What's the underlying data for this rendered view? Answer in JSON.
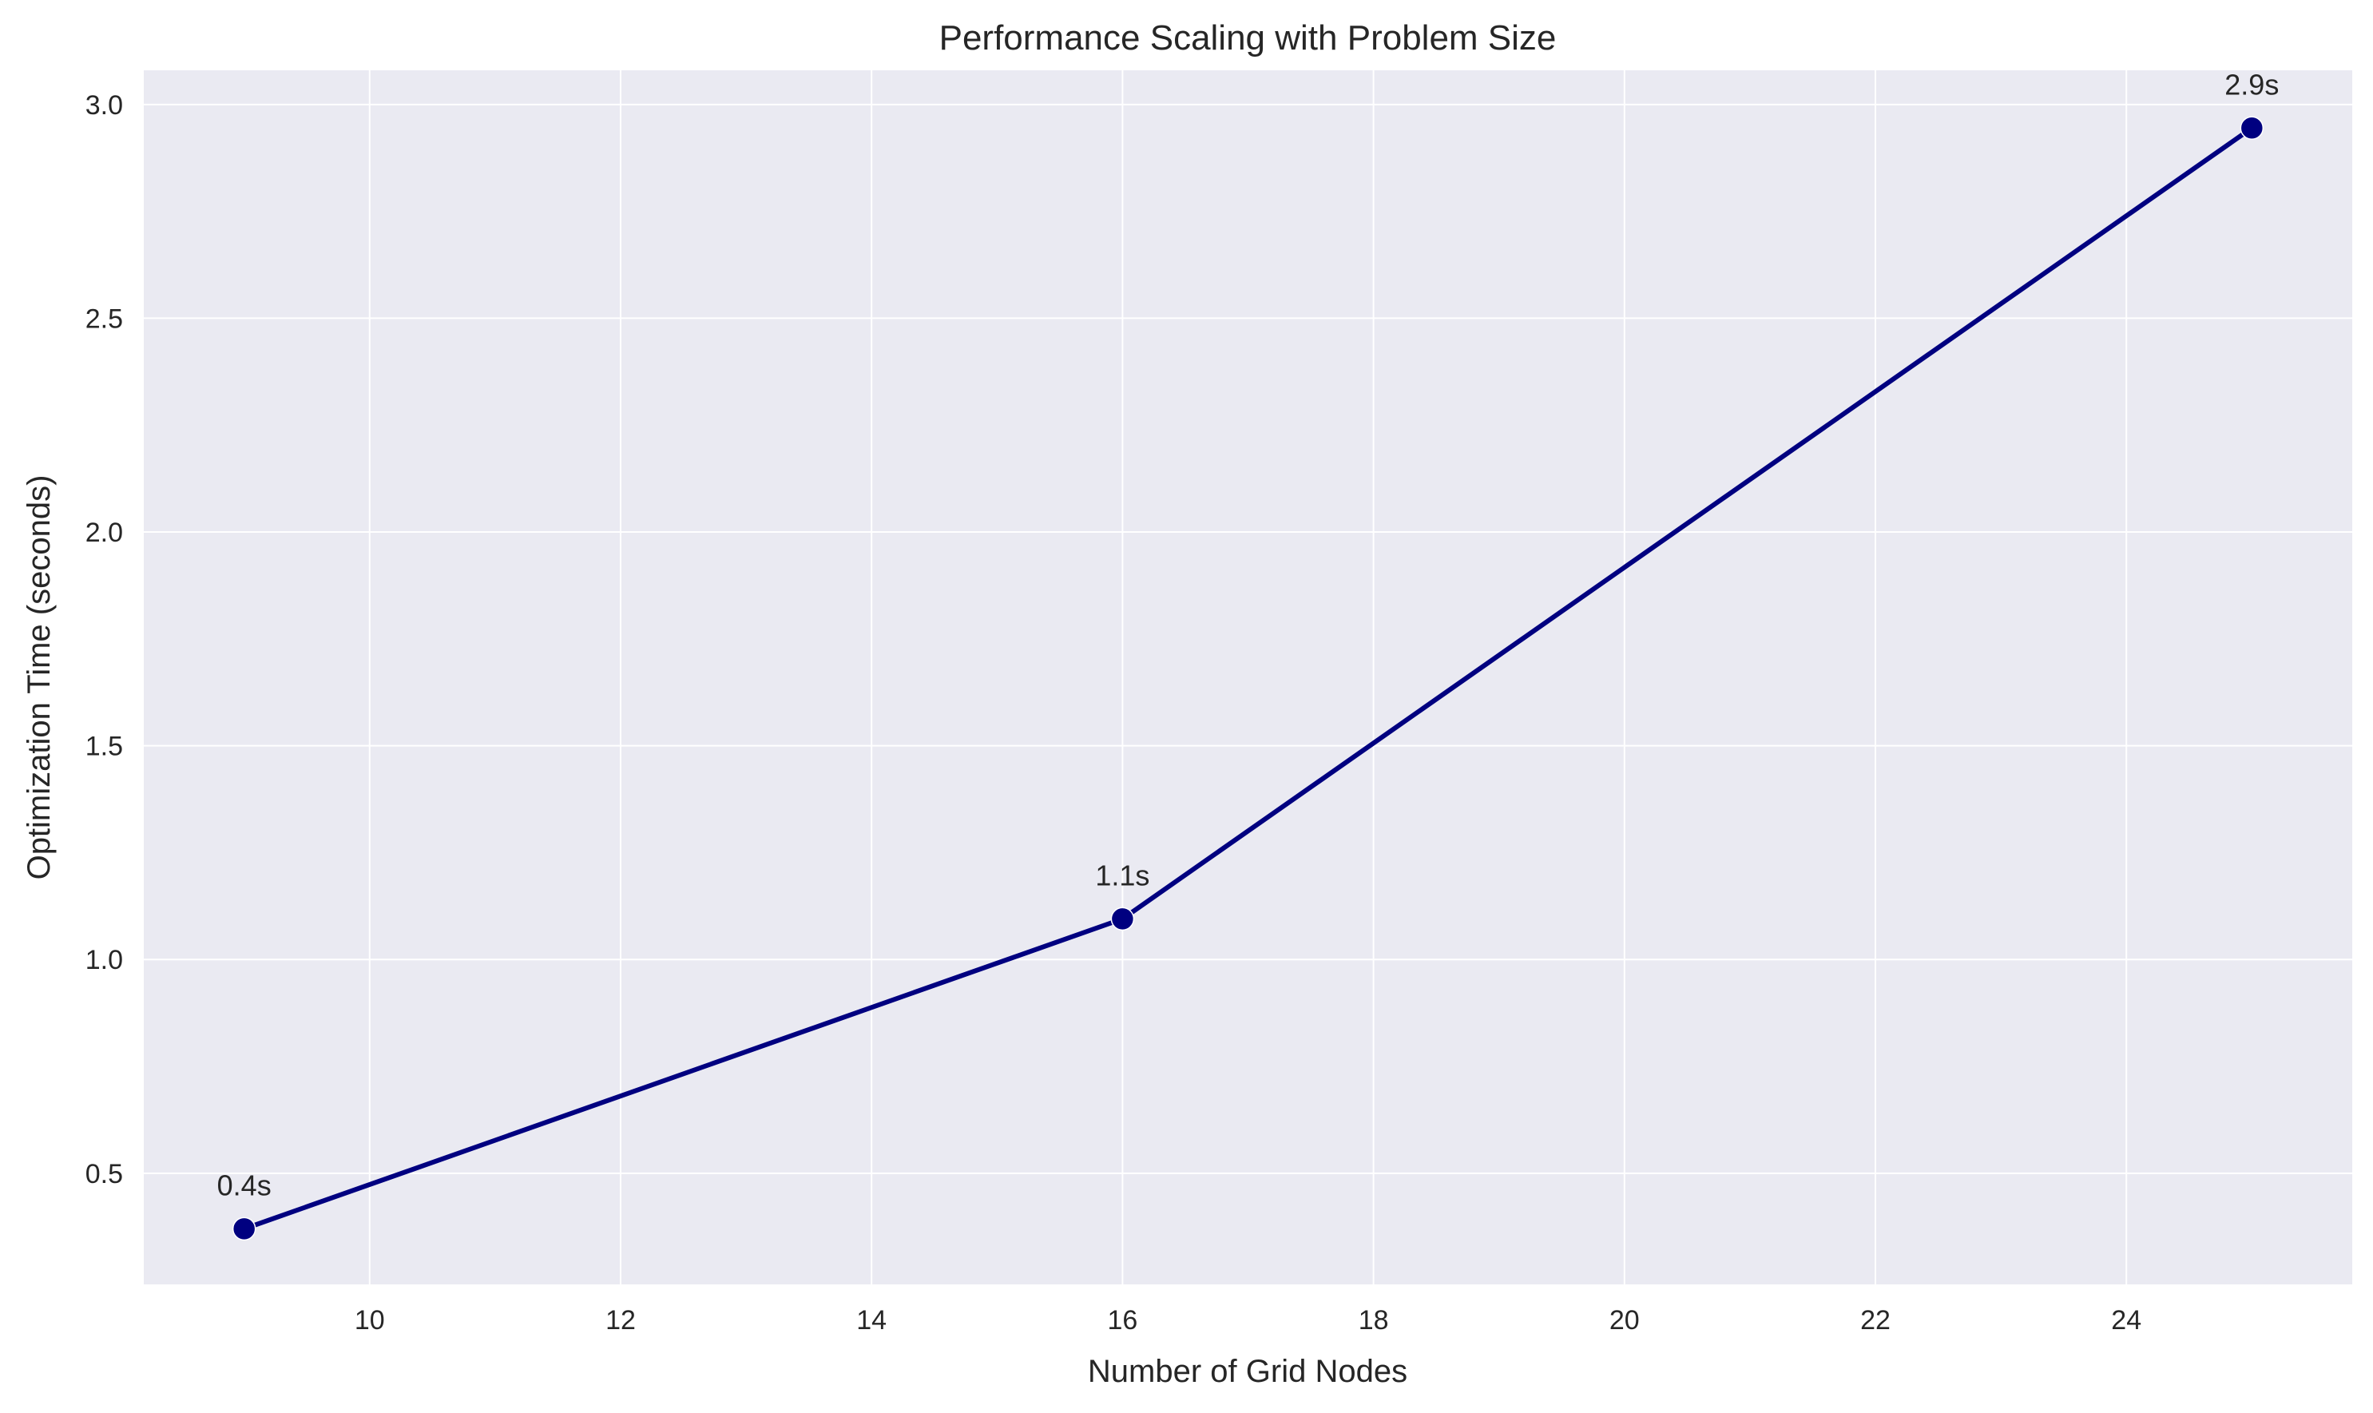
{
  "chart_data": {
    "type": "line",
    "title": "Performance Scaling with Problem Size",
    "xlabel": "Number of Grid Nodes",
    "ylabel": "Optimization Time (seconds)",
    "x": [
      9,
      16,
      25
    ],
    "series": [
      {
        "values": [
          0.37,
          1.095,
          2.945
        ],
        "data_labels": [
          "0.4s",
          "1.1s",
          "2.9s"
        ],
        "color": "#000080"
      }
    ],
    "xlim": [
      8.2,
      25.8
    ],
    "ylim": [
      0.24,
      3.08
    ],
    "xticks": [
      10,
      12,
      14,
      16,
      18,
      20,
      22,
      24
    ],
    "yticks": [
      0.5,
      1.0,
      1.5,
      2.0,
      2.5,
      3.0
    ],
    "xtick_labels": [
      "10",
      "12",
      "14",
      "16",
      "18",
      "20",
      "22",
      "24"
    ],
    "ytick_labels": [
      "0.5",
      "1.0",
      "1.5",
      "2.0",
      "2.5",
      "3.0"
    ],
    "grid": true,
    "plot_background": "#eaeaf2",
    "grid_color": "#ffffff"
  }
}
